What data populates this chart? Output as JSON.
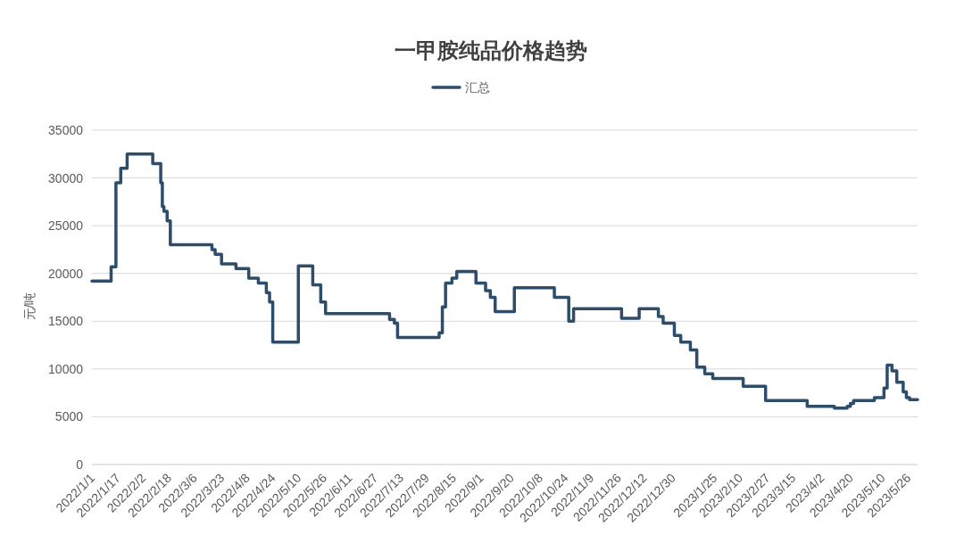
{
  "chart_data": {
    "type": "step",
    "title": "一甲胺纯品价格趋势",
    "ylabel": "元/吨",
    "legend": "top",
    "grid": "y",
    "xlim": [
      "2022-01-01",
      "2023-06-01"
    ],
    "ylim": [
      0,
      35000
    ],
    "yticks": [
      0,
      5000,
      10000,
      15000,
      20000,
      25000,
      30000,
      35000
    ],
    "xticks": [
      {
        "value": "2022-01-01",
        "label": "2022/1/1"
      },
      {
        "value": "2022-01-17",
        "label": "2022/1/17"
      },
      {
        "value": "2022-02-02",
        "label": "2022/2/2"
      },
      {
        "value": "2022-02-18",
        "label": "2022/2/18"
      },
      {
        "value": "2022-03-06",
        "label": "2022/3/6"
      },
      {
        "value": "2022-03-23",
        "label": "2022/3/23"
      },
      {
        "value": "2022-04-08",
        "label": "2022/4/8"
      },
      {
        "value": "2022-04-24",
        "label": "2022/4/24"
      },
      {
        "value": "2022-05-10",
        "label": "2022/5/10"
      },
      {
        "value": "2022-05-26",
        "label": "2022/5/26"
      },
      {
        "value": "2022-06-11",
        "label": "2022/6/11"
      },
      {
        "value": "2022-06-27",
        "label": "2022/6/27"
      },
      {
        "value": "2022-07-13",
        "label": "2022/7/13"
      },
      {
        "value": "2022-07-29",
        "label": "2022/7/29"
      },
      {
        "value": "2022-08-15",
        "label": "2022/8/15"
      },
      {
        "value": "2022-09-01",
        "label": "2022/9/1"
      },
      {
        "value": "2022-09-20",
        "label": "2022/9/20"
      },
      {
        "value": "2022-10-08",
        "label": "2022/10/8"
      },
      {
        "value": "2022-10-24",
        "label": "2022/10/24"
      },
      {
        "value": "2022-11-09",
        "label": "2022/11/9"
      },
      {
        "value": "2022-11-26",
        "label": "2022/11/26"
      },
      {
        "value": "2022-12-12",
        "label": "2022/12/12"
      },
      {
        "value": "2022-12-30",
        "label": "2022/12/30"
      },
      {
        "value": "2023-01-25",
        "label": "2023/1/25"
      },
      {
        "value": "2023-02-10",
        "label": "2023/2/10"
      },
      {
        "value": "2023-02-27",
        "label": "2023/2/27"
      },
      {
        "value": "2023-03-15",
        "label": "2023/3/15"
      },
      {
        "value": "2023-04-02",
        "label": "2023/4/2"
      },
      {
        "value": "2023-04-20",
        "label": "2023/4/20"
      },
      {
        "value": "2023-05-10",
        "label": "2023/5/10"
      },
      {
        "value": "2023-05-26",
        "label": "2023/5/26"
      }
    ],
    "series": [
      {
        "name": "汇总",
        "color": "#2e4d6b",
        "x": [
          "2022-01-01",
          "2022-01-13",
          "2022-01-16",
          "2022-01-19",
          "2022-01-23",
          "2022-02-08",
          "2022-02-13",
          "2022-02-14",
          "2022-02-15",
          "2022-02-17",
          "2022-02-19",
          "2022-03-17",
          "2022-03-19",
          "2022-03-23",
          "2022-04-01",
          "2022-04-09",
          "2022-04-15",
          "2022-04-20",
          "2022-04-22",
          "2022-04-24",
          "2022-05-10",
          "2022-05-19",
          "2022-05-24",
          "2022-05-27",
          "2022-07-06",
          "2022-07-09",
          "2022-07-11",
          "2022-08-06",
          "2022-08-08",
          "2022-08-10",
          "2022-08-14",
          "2022-08-17",
          "2022-08-29",
          "2022-09-04",
          "2022-09-07",
          "2022-09-10",
          "2022-09-22",
          "2022-10-17",
          "2022-10-26",
          "2022-10-29",
          "2022-11-28",
          "2022-12-09",
          "2022-12-21",
          "2022-12-24",
          "2022-12-31",
          "2023-01-04",
          "2023-01-10",
          "2023-01-14",
          "2023-01-19",
          "2023-01-24",
          "2023-02-12",
          "2023-02-26",
          "2023-03-24",
          "2023-04-10",
          "2023-04-18",
          "2023-04-20",
          "2023-04-22",
          "2023-05-05",
          "2023-05-11",
          "2023-05-13",
          "2023-05-16",
          "2023-05-19",
          "2023-05-23",
          "2023-05-25",
          "2023-05-27",
          "2023-06-01"
        ],
        "values": [
          19200,
          20700,
          29500,
          31000,
          32500,
          31500,
          29500,
          27000,
          26500,
          25500,
          23000,
          22500,
          22000,
          21000,
          20500,
          19500,
          19000,
          18000,
          17000,
          12800,
          20800,
          18800,
          17000,
          15800,
          15200,
          14800,
          13300,
          13800,
          16500,
          19000,
          19500,
          20200,
          19000,
          18200,
          17500,
          16000,
          18500,
          17500,
          15000,
          16300,
          15300,
          16300,
          15500,
          14800,
          13500,
          12800,
          12000,
          10200,
          9500,
          9000,
          8200,
          6700,
          6100,
          5900,
          6100,
          6400,
          6700,
          7000,
          8000,
          10400,
          9800,
          8600,
          7600,
          7000,
          6800,
          6800
        ]
      }
    ]
  }
}
